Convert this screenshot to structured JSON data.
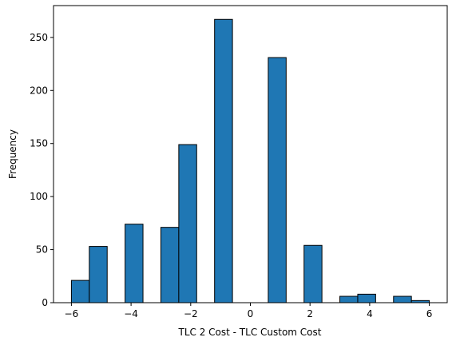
{
  "chart_data": {
    "type": "bar",
    "title": "",
    "xlabel": "TLC 2 Cost - TLC Custom Cost",
    "ylabel": "Frequency",
    "xlim": [
      -6.6,
      6.6
    ],
    "ylim": [
      0,
      280
    ],
    "xticks": [
      -6,
      -4,
      -2,
      0,
      2,
      4,
      6
    ],
    "xtick_labels": [
      "−6",
      "−4",
      "−2",
      "0",
      "2",
      "4",
      "6"
    ],
    "yticks": [
      0,
      50,
      100,
      150,
      200,
      250
    ],
    "ytick_labels": [
      "0",
      "50",
      "100",
      "150",
      "200",
      "250"
    ],
    "grid": false,
    "bar_color": "#1f77b4",
    "edge_color": "#000000",
    "bins": [
      {
        "x0": -6.0,
        "x1": -5.4,
        "value": 21
      },
      {
        "x0": -5.4,
        "x1": -4.8,
        "value": 53
      },
      {
        "x0": -4.8,
        "x1": -4.2,
        "value": 0
      },
      {
        "x0": -4.2,
        "x1": -3.6,
        "value": 74
      },
      {
        "x0": -3.6,
        "x1": -3.0,
        "value": 0
      },
      {
        "x0": -3.0,
        "x1": -2.4,
        "value": 71
      },
      {
        "x0": -2.4,
        "x1": -1.8,
        "value": 149
      },
      {
        "x0": -1.8,
        "x1": -1.2,
        "value": 0
      },
      {
        "x0": -1.2,
        "x1": -0.6,
        "value": 267
      },
      {
        "x0": -0.6,
        "x1": 0.0,
        "value": 0
      },
      {
        "x0": 0.0,
        "x1": 0.6,
        "value": 0
      },
      {
        "x0": 0.6,
        "x1": 1.2,
        "value": 231
      },
      {
        "x0": 1.2,
        "x1": 1.8,
        "value": 0
      },
      {
        "x0": 1.8,
        "x1": 2.4,
        "value": 54
      },
      {
        "x0": 2.4,
        "x1": 3.0,
        "value": 0
      },
      {
        "x0": 3.0,
        "x1": 3.6,
        "value": 6
      },
      {
        "x0": 3.6,
        "x1": 4.2,
        "value": 8
      },
      {
        "x0": 4.2,
        "x1": 4.8,
        "value": 0
      },
      {
        "x0": 4.8,
        "x1": 5.4,
        "value": 6
      },
      {
        "x0": 5.4,
        "x1": 6.0,
        "value": 2
      }
    ]
  }
}
